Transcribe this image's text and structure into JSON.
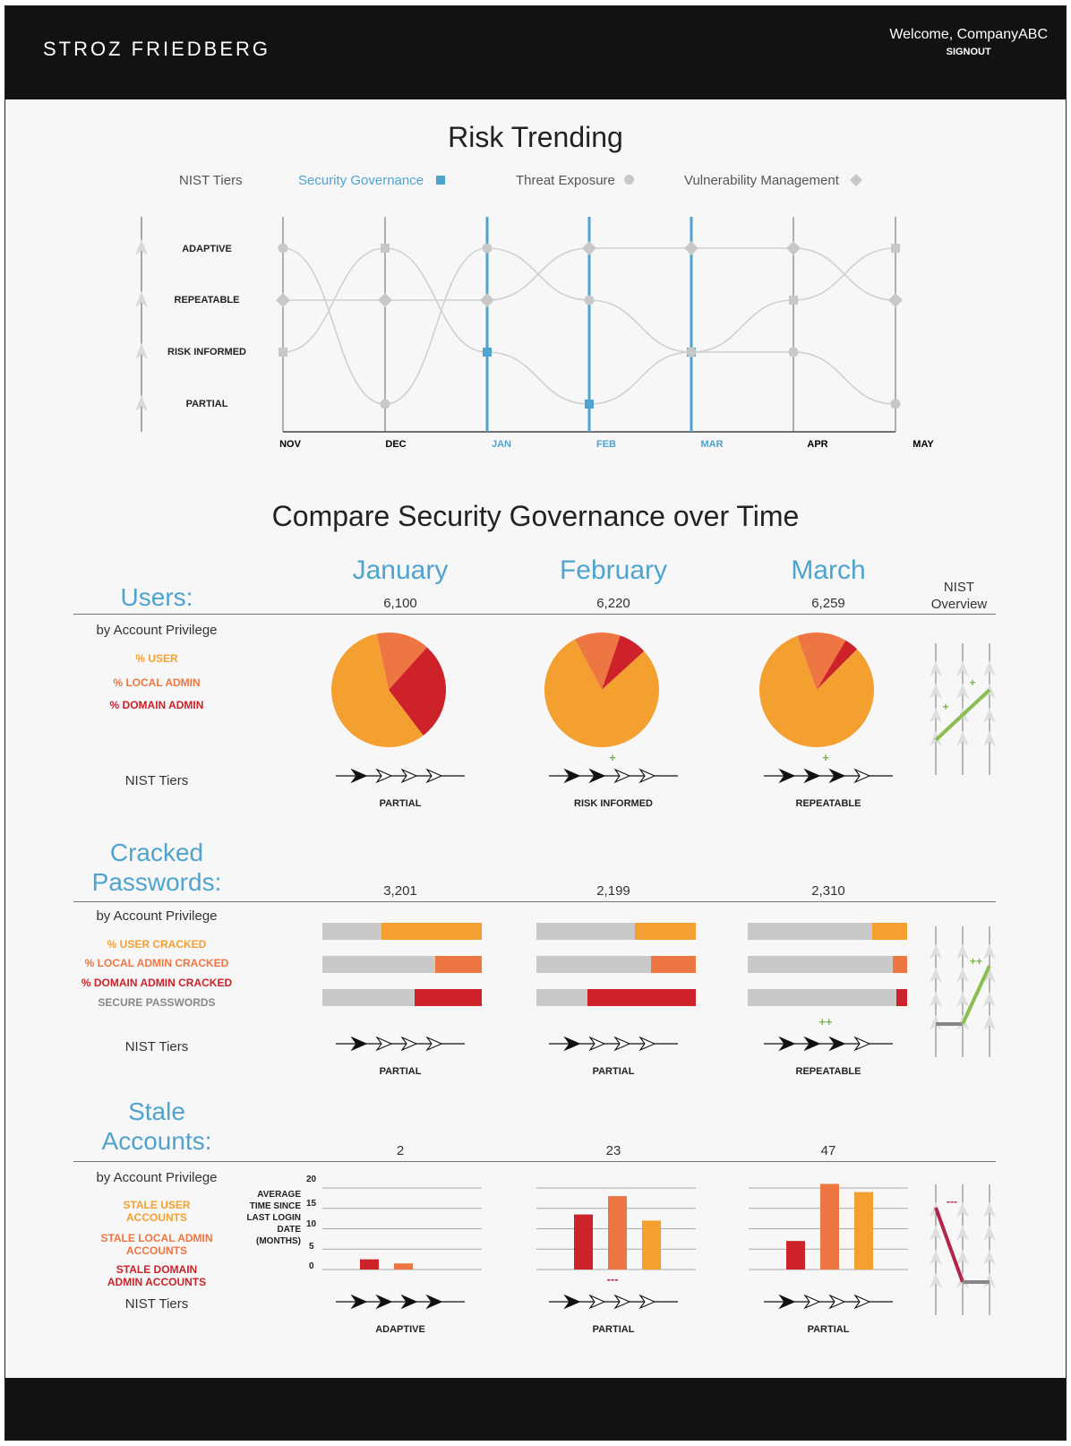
{
  "header": {
    "brand": "STROZ FRIEDBERG",
    "welcome": "Welcome, CompanyABC",
    "signout": "SIGNOUT"
  },
  "risk": {
    "title": "Risk Trending",
    "legend": {
      "tiers": "NIST Tiers",
      "sg": "Security Governance",
      "te": "Threat Exposure",
      "vm": "Vulnerability Management"
    },
    "tiers": [
      "ADAPTIVE",
      "REPEATABLE",
      "RISK INFORMED",
      "PARTIAL"
    ],
    "months": [
      "NOV",
      "DEC",
      "JAN",
      "FEB",
      "MAR",
      "APR",
      "MAY"
    ],
    "highlight_months": [
      "JAN",
      "FEB",
      "MAR"
    ]
  },
  "chart_data": [
    {
      "type": "line",
      "title": "Risk Trending",
      "x": [
        "NOV",
        "DEC",
        "JAN",
        "FEB",
        "MAR",
        "APR",
        "MAY"
      ],
      "y_categories": [
        "PARTIAL",
        "RISK INFORMED",
        "REPEATABLE",
        "ADAPTIVE"
      ],
      "series": [
        {
          "name": "Security Governance",
          "marker": "square",
          "values": [
            "RISK INFORMED",
            "ADAPTIVE",
            "RISK INFORMED",
            "PARTIAL",
            "RISK INFORMED",
            "REPEATABLE",
            "ADAPTIVE"
          ]
        },
        {
          "name": "Threat Exposure",
          "marker": "circle",
          "values": [
            "ADAPTIVE",
            "PARTIAL",
            "ADAPTIVE",
            "REPEATABLE",
            "RISK INFORMED",
            "RISK INFORMED",
            "PARTIAL"
          ]
        },
        {
          "name": "Vulnerability Management",
          "marker": "diamond",
          "values": [
            "REPEATABLE",
            "REPEATABLE",
            "REPEATABLE",
            "ADAPTIVE",
            "ADAPTIVE",
            "ADAPTIVE",
            "REPEATABLE"
          ]
        }
      ]
    },
    {
      "type": "pie",
      "title": "Users: by Account Privilege",
      "categories": [
        "January",
        "February",
        "March"
      ],
      "series": [
        {
          "name": "% USER",
          "values": [
            57,
            79,
            82
          ]
        },
        {
          "name": "% LOCAL ADMIN",
          "values": [
            15,
            13,
            14
          ]
        },
        {
          "name": "% DOMAIN ADMIN",
          "values": [
            28,
            8,
            4
          ]
        }
      ]
    },
    {
      "type": "bar",
      "title": "Cracked Passwords: by Account Privilege",
      "categories": [
        "January",
        "February",
        "March"
      ],
      "series": [
        {
          "name": "% USER CRACKED",
          "values": [
            63,
            38,
            22
          ]
        },
        {
          "name": "% LOCAL ADMIN CRACKED",
          "values": [
            29,
            28,
            9
          ]
        },
        {
          "name": "% DOMAIN ADMIN CRACKED",
          "values": [
            42,
            68,
            7
          ]
        }
      ]
    },
    {
      "type": "bar",
      "title": "Stale Accounts: by Account Privilege",
      "ylabel": "AVERAGE TIME SINCE LAST LOGIN DATE (MONTHS)",
      "ylim": [
        0,
        20
      ],
      "categories": [
        "January",
        "February",
        "March"
      ],
      "series": [
        {
          "name": "STALE USER ACCOUNTS",
          "values": [
            0,
            12,
            19
          ]
        },
        {
          "name": "STALE LOCAL ADMIN ACCOUNTS",
          "values": [
            1.5,
            18,
            21
          ]
        },
        {
          "name": "STALE DOMAIN ADMIN ACCOUNTS",
          "values": [
            2.5,
            13.5,
            7
          ]
        }
      ]
    }
  ],
  "compare": {
    "title": "Compare Security Governance over Time",
    "months": [
      "January",
      "February",
      "March"
    ],
    "nist_overview": "NIST Overview",
    "nist_tiers_label": "NIST Tiers",
    "by_privilege": "by Account Privilege",
    "colors": {
      "user": "#f4a031",
      "local": "#ee7642",
      "domain": "#cd2229",
      "secure": "#c8c8c8",
      "plus": "#7fb34e"
    },
    "users": {
      "title": "Users:",
      "counts": [
        "6,100",
        "6,220",
        "6,259"
      ],
      "cats": [
        "% USER",
        "% LOCAL ADMIN",
        "% DOMAIN ADMIN"
      ],
      "tiers": [
        "PARTIAL",
        "RISK INFORMED",
        "REPEATABLE"
      ],
      "deltas": [
        "",
        "+",
        "+"
      ]
    },
    "cracked": {
      "title1": "Cracked",
      "title2": "Passwords:",
      "counts": [
        "3,201",
        "2,199",
        "2,310"
      ],
      "cats": [
        "% USER CRACKED",
        "% LOCAL ADMIN CRACKED",
        "% DOMAIN ADMIN CRACKED",
        "SECURE PASSWORDS"
      ],
      "tiers": [
        "PARTIAL",
        "PARTIAL",
        "REPEATABLE"
      ],
      "deltas": [
        "",
        "",
        "++"
      ]
    },
    "stale": {
      "title1": "Stale",
      "title2": "Accounts:",
      "counts": [
        "2",
        "23",
        "47"
      ],
      "cats": [
        "STALE USER ACCOUNTS",
        "STALE LOCAL ADMIN ACCOUNTS",
        "STALE DOMAIN ADMIN ACCOUNTS"
      ],
      "ylabel": "AVERAGE TIME SINCE LAST LOGIN DATE (MONTHS)",
      "yticks": [
        "20",
        "15",
        "10",
        "5",
        "0"
      ],
      "tiers": [
        "ADAPTIVE",
        "PARTIAL",
        "PARTIAL"
      ],
      "deltas": [
        "",
        "---",
        ""
      ]
    },
    "overview_deltas": {
      "users": [
        "+",
        "+"
      ],
      "cracked": [
        "++"
      ],
      "stale": [
        "---"
      ]
    }
  }
}
